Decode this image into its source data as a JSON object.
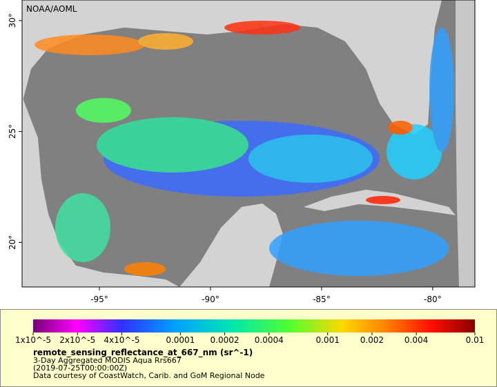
{
  "map": {
    "label": "NOAA/AOML",
    "xlim": [
      -98.48,
      -78.1
    ],
    "ylim": [
      17.99,
      30.93
    ],
    "xticks": [
      {
        "value": -95,
        "label": "-95°"
      },
      {
        "value": -90,
        "label": "-90°"
      },
      {
        "value": -85,
        "label": "-85°"
      },
      {
        "value": -80,
        "label": "-80°"
      }
    ],
    "yticks": [
      {
        "value": 20,
        "label": "20°"
      },
      {
        "value": 25,
        "label": "25°"
      },
      {
        "value": 30,
        "label": "30°"
      }
    ]
  },
  "legend": {
    "scale": "log",
    "lim": [
      1e-05,
      0.01
    ],
    "ticks": [
      {
        "value": 1e-05,
        "label": "1x10^-5"
      },
      {
        "value": 2e-05,
        "label": "2x10^-5"
      },
      {
        "value": 4e-05,
        "label": "4x10^-5"
      },
      0.0001,
      0.0002,
      0.0004,
      0.001,
      0.002,
      0.004,
      0.01
    ],
    "title": "remote_sensing_reflectance_at_667_nm (sr^-1)",
    "lines": [
      "3-Day Aggregated MODIS Aqua Rrs667",
      "(2019-07-25T00:00:00Z)",
      "Data courtesy of CoastWatch, Carib. and GoM Regional Node"
    ]
  }
}
